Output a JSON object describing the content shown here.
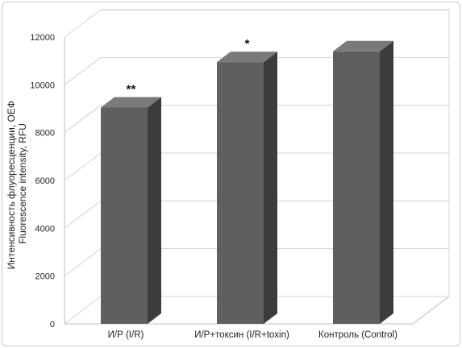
{
  "chart_data": {
    "type": "bar",
    "categories": [
      "И/Р (I/R)",
      "И/Р+токсин (I/R+toxin)",
      "Контроль (Control)"
    ],
    "values": [
      9050,
      10950,
      11400
    ],
    "annotations": [
      "**",
      "*",
      ""
    ],
    "ylabel_lines": [
      "Интенсивность флуоресценции, ОЕФ",
      "Fluorescence intensity, RFU"
    ],
    "ylim": [
      0,
      12000
    ],
    "yticks": [
      0,
      2000,
      4000,
      6000,
      8000,
      10000,
      12000
    ],
    "grid": true,
    "three_d": true,
    "colors": {
      "bar_front": "#5f5f5f",
      "bar_top": "#7a7a7a",
      "bar_side": "#3c3c3c",
      "grid": "#d4d4d4",
      "axis": "#bdbdbd"
    }
  }
}
